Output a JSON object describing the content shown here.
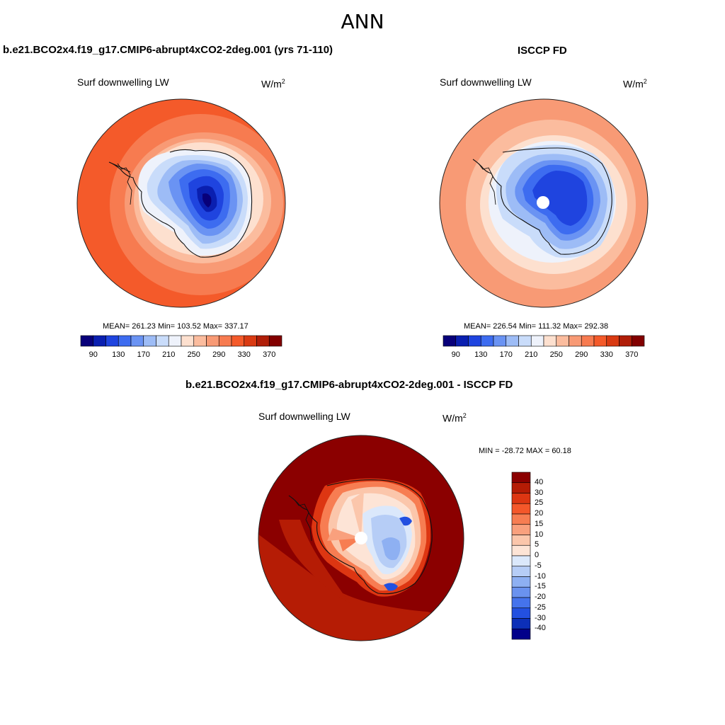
{
  "title": "ANN",
  "panels": [
    {
      "title": "b.e21.BCO2x4.f19_g17.CMIP6-abrupt4xCO2-2deg.001 (yrs 71-110)",
      "variable": "Surf downwelling LW",
      "unit_base": "W/m",
      "unit_exp": "2",
      "stats": "MEAN= 261.23  Min= 103.52  Max= 337.17",
      "colorbar_ticks": [
        "90",
        "130",
        "170",
        "210",
        "250",
        "290",
        "330",
        "370"
      ]
    },
    {
      "title": "ISCCP FD",
      "variable": "Surf downwelling LW",
      "unit_base": "W/m",
      "unit_exp": "2",
      "stats": "MEAN= 226.54  Min= 111.32  Max= 292.38",
      "colorbar_ticks": [
        "90",
        "130",
        "170",
        "210",
        "250",
        "290",
        "330",
        "370"
      ]
    },
    {
      "title": "b.e21.BCO2x4.f19_g17.CMIP6-abrupt4xCO2-2deg.001 - ISCCP FD",
      "variable": "Surf downwelling LW",
      "unit_base": "W/m",
      "unit_exp": "2",
      "stats": "MIN = -28.72 MAX =  60.18",
      "colorbar_ticks": [
        "40",
        "30",
        "25",
        "20",
        "15",
        "10",
        "5",
        "0",
        "-5",
        "-10",
        "-15",
        "-20",
        "-25",
        "-30",
        "-40"
      ]
    }
  ],
  "colors": {
    "seq": [
      "#08007a",
      "#0a1fb0",
      "#1f44df",
      "#3d6cf0",
      "#6a93f3",
      "#9dbcf6",
      "#c9dcfa",
      "#eef2fb",
      "#fde0cf",
      "#fbbc9e",
      "#f89a75",
      "#f77b50",
      "#f45a2a",
      "#d93a12",
      "#b01e08",
      "#820000"
    ],
    "diff": [
      "#8b0000",
      "#b51c05",
      "#dd3612",
      "#f4572a",
      "#f77d52",
      "#f9a07d",
      "#fbc6ab",
      "#fde4d6",
      "#dbe8fb",
      "#b6cdf6",
      "#8eb0f2",
      "#6a92ef",
      "#4573ec",
      "#2350e0",
      "#0c2fb8",
      "#01008a"
    ],
    "coast": "#111111"
  }
}
